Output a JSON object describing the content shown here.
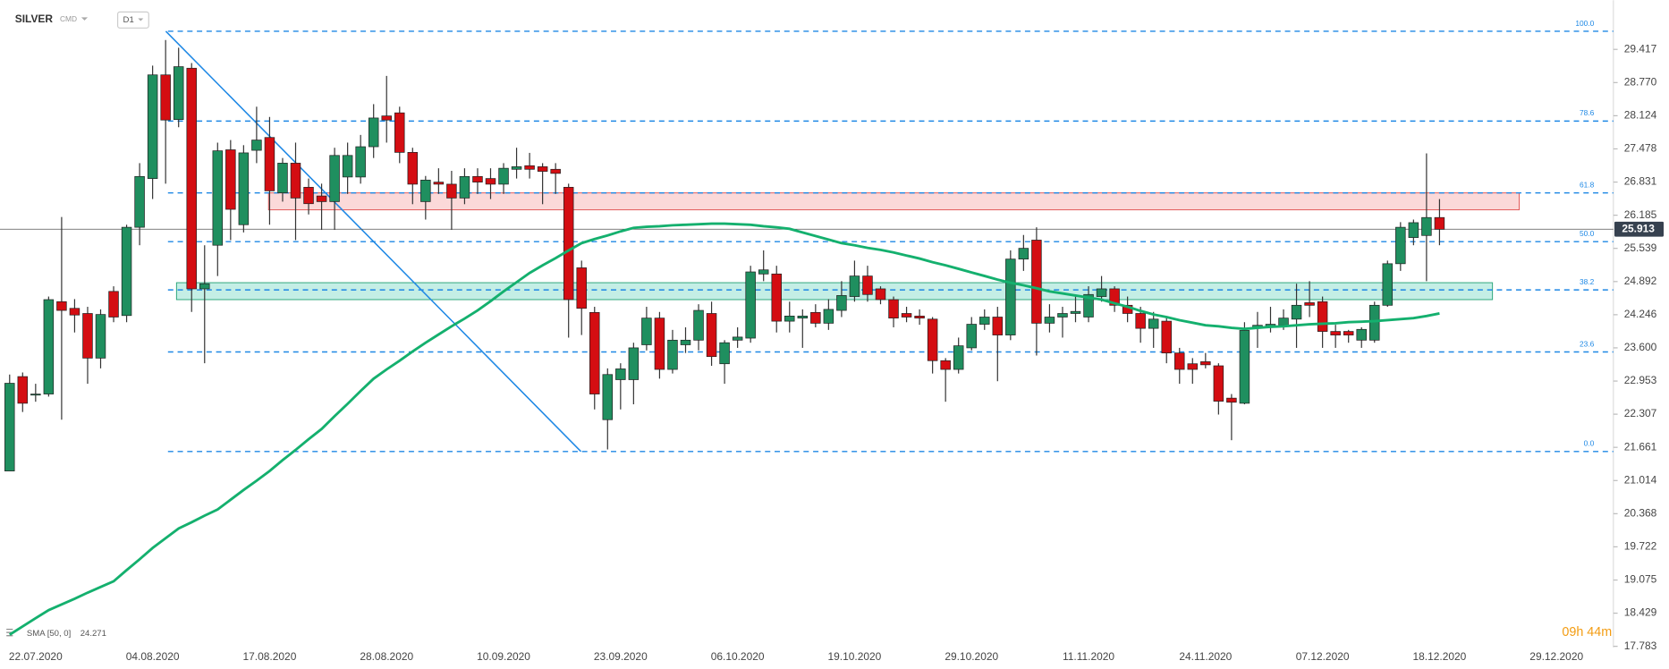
{
  "chart_data": {
    "type": "candlestick",
    "symbol": "SILVER",
    "market": "CMD",
    "timeframe": "D1",
    "categories": [
      null,
      null,
      "22.07.2020",
      null,
      null,
      null,
      null,
      null,
      null,
      null,
      null,
      "04.08.2020",
      null,
      null,
      null,
      null,
      null,
      null,
      null,
      null,
      "17.08.2020",
      null,
      null,
      null,
      null,
      null,
      null,
      null,
      null,
      "28.08.2020",
      null,
      null,
      null,
      null,
      null,
      null,
      null,
      null,
      "10.09.2020",
      null,
      null,
      null,
      null,
      null,
      null,
      null,
      null,
      "23.09.2020",
      null,
      null,
      null,
      null,
      null,
      null,
      null,
      null,
      "06.10.2020",
      null,
      null,
      null,
      null,
      null,
      null,
      null,
      null,
      "19.10.2020",
      null,
      null,
      null,
      null,
      null,
      null,
      null,
      null,
      "29.10.2020",
      null,
      null,
      null,
      null,
      null,
      null,
      null,
      null,
      "11.11.2020",
      null,
      null,
      null,
      null,
      null,
      null,
      null,
      null,
      "24.11.2020",
      null,
      null,
      null,
      null,
      null,
      null,
      null,
      null,
      "07.12.2020",
      null,
      null,
      null,
      null,
      null,
      null,
      null,
      null,
      "18.12.2020",
      null,
      null,
      null,
      null,
      null,
      null,
      null,
      null,
      "29.12.2020"
    ],
    "open": [
      21.2,
      23.04,
      22.68,
      22.7,
      24.5,
      24.37,
      24.27,
      23.4,
      24.7,
      24.23,
      25.95,
      26.9,
      28.92,
      28.05,
      29.05,
      24.75,
      25.6,
      27.46,
      26.0,
      27.45,
      27.7,
      26.62,
      27.2,
      26.73,
      26.56,
      26.45,
      26.93,
      26.93,
      27.52,
      28.12,
      28.18,
      27.41,
      26.45,
      26.83,
      26.79,
      26.52,
      26.94,
      26.9,
      26.79,
      27.08,
      27.15,
      27.13,
      27.08,
      26.73,
      25.16,
      24.29,
      22.2,
      22.98,
      22.98,
      23.66,
      24.18,
      23.18,
      23.66,
      23.75,
      24.27,
      23.29,
      23.75,
      23.79,
      25.04,
      25.04,
      24.12,
      24.18,
      24.29,
      24.08,
      24.33,
      24.6,
      25.0,
      24.75,
      24.54,
      24.27,
      24.22,
      24.16,
      23.35,
      23.18,
      23.6,
      24.06,
      24.2,
      23.85,
      25.33,
      25.7,
      24.08,
      24.2,
      24.27,
      24.2,
      24.6,
      24.75,
      24.43,
      24.27,
      23.98,
      24.12,
      23.5,
      23.29,
      23.33,
      23.25,
      22.62,
      22.52,
      23.98,
      24.0,
      24.04,
      24.16,
      24.48,
      24.5,
      23.92,
      23.92,
      23.75,
      23.75,
      24.43,
      25.24,
      25.75,
      25.79,
      26.14,
      null,
      null,
      null,
      null,
      null,
      null,
      null,
      null,
      null
    ],
    "high": [
      23.08,
      23.12,
      22.9,
      24.6,
      26.15,
      24.55,
      24.4,
      24.35,
      24.8,
      26.0,
      27.2,
      29.1,
      29.6,
      29.45,
      29.15,
      25.6,
      27.6,
      27.65,
      27.55,
      28.3,
      28.1,
      27.3,
      27.6,
      26.9,
      26.8,
      27.5,
      27.6,
      27.75,
      28.35,
      28.9,
      28.3,
      27.5,
      26.95,
      27.1,
      27.05,
      27.1,
      27.1,
      27.1,
      27.2,
      27.5,
      27.4,
      27.2,
      27.2,
      26.8,
      25.3,
      24.4,
      23.2,
      23.3,
      23.7,
      24.4,
      24.3,
      23.95,
      24.0,
      24.45,
      24.5,
      23.75,
      24.0,
      25.2,
      25.5,
      25.2,
      24.5,
      24.35,
      24.45,
      24.55,
      24.9,
      25.3,
      25.2,
      24.8,
      24.6,
      24.4,
      24.35,
      24.2,
      23.4,
      23.8,
      24.2,
      24.35,
      24.4,
      25.5,
      25.8,
      25.95,
      24.45,
      24.4,
      24.6,
      24.8,
      25.0,
      24.8,
      24.6,
      24.4,
      24.3,
      24.2,
      23.6,
      23.4,
      23.5,
      23.3,
      22.7,
      24.1,
      24.3,
      24.4,
      24.35,
      24.85,
      24.9,
      24.6,
      24.05,
      23.95,
      24.0,
      24.5,
      25.3,
      26.05,
      26.1,
      27.39,
      26.5,
      null,
      null,
      null,
      null,
      null,
      null,
      null,
      null,
      null
    ],
    "low": [
      21.2,
      22.35,
      22.55,
      22.65,
      22.2,
      23.9,
      22.9,
      23.2,
      24.1,
      24.1,
      25.6,
      26.5,
      26.8,
      27.9,
      24.3,
      23.3,
      25.0,
      25.7,
      25.85,
      27.2,
      26.0,
      26.45,
      25.7,
      26.2,
      25.9,
      25.9,
      26.6,
      26.8,
      27.3,
      27.6,
      27.2,
      26.4,
      26.1,
      26.6,
      25.9,
      26.4,
      26.6,
      26.5,
      26.6,
      26.9,
      26.9,
      26.4,
      26.6,
      23.8,
      23.85,
      22.4,
      21.62,
      22.4,
      22.5,
      23.55,
      23.0,
      23.1,
      23.5,
      23.55,
      23.25,
      22.9,
      23.6,
      23.7,
      24.9,
      23.9,
      23.9,
      23.6,
      24.0,
      23.95,
      24.2,
      24.5,
      24.5,
      24.45,
      24.0,
      24.1,
      24.05,
      23.1,
      22.55,
      23.1,
      23.55,
      23.95,
      22.95,
      23.75,
      25.1,
      23.45,
      23.9,
      23.8,
      24.1,
      24.1,
      24.5,
      24.3,
      24.1,
      23.7,
      23.6,
      23.3,
      22.9,
      22.9,
      23.2,
      22.3,
      21.8,
      22.5,
      23.6,
      23.9,
      23.95,
      23.6,
      24.2,
      23.6,
      23.6,
      23.7,
      23.6,
      23.7,
      24.4,
      25.1,
      25.6,
      24.9,
      25.6,
      null,
      null,
      null,
      null,
      null,
      null,
      null,
      null,
      null
    ],
    "close": [
      22.91,
      22.52,
      22.7,
      24.54,
      24.33,
      24.24,
      23.4,
      24.25,
      24.2,
      25.95,
      26.94,
      28.92,
      28.04,
      29.08,
      24.75,
      24.85,
      27.44,
      26.3,
      27.4,
      27.65,
      26.66,
      27.2,
      26.52,
      26.41,
      26.45,
      27.35,
      27.35,
      27.52,
      28.08,
      28.04,
      27.41,
      26.79,
      26.87,
      26.79,
      26.52,
      26.94,
      26.83,
      26.79,
      27.1,
      27.13,
      27.08,
      27.04,
      27.0,
      24.54,
      24.37,
      22.7,
      23.08,
      23.19,
      23.6,
      24.18,
      23.18,
      23.75,
      23.75,
      24.33,
      23.43,
      23.7,
      23.81,
      25.08,
      25.12,
      24.12,
      24.22,
      24.22,
      24.08,
      24.35,
      24.62,
      25.0,
      24.64,
      24.54,
      24.18,
      24.2,
      24.18,
      23.35,
      23.18,
      23.64,
      24.06,
      24.2,
      23.85,
      25.33,
      25.54,
      24.08,
      24.2,
      24.27,
      24.31,
      24.64,
      24.75,
      24.43,
      24.27,
      23.98,
      24.16,
      23.5,
      23.18,
      23.18,
      23.27,
      22.56,
      22.54,
      23.94,
      24.04,
      24.06,
      24.18,
      24.43,
      24.43,
      23.92,
      23.85,
      23.85,
      23.96,
      24.43,
      25.24,
      25.95,
      26.04,
      26.14,
      25.91,
      null,
      null,
      null,
      null,
      null,
      null,
      null,
      null,
      null
    ],
    "up_color": "#1f8f5f",
    "down_color": "#d40d12",
    "sma": {
      "name": "SMA [50, 0]",
      "color": "#14b06e",
      "last_value_label": "24.271",
      "values": [
        18.01,
        18.17,
        18.33,
        18.49,
        18.6,
        18.71,
        18.83,
        18.94,
        19.05,
        19.27,
        19.48,
        19.7,
        19.89,
        20.08,
        20.2,
        20.33,
        20.45,
        20.64,
        20.83,
        21.01,
        21.2,
        21.41,
        21.61,
        21.82,
        22.02,
        22.27,
        22.51,
        22.76,
        23.0,
        23.18,
        23.35,
        23.53,
        23.7,
        23.86,
        24.02,
        24.17,
        24.33,
        24.51,
        24.7,
        24.88,
        25.06,
        25.21,
        25.35,
        25.5,
        25.64,
        25.72,
        25.79,
        25.87,
        25.94,
        25.96,
        25.97,
        25.99,
        26.0,
        26.01,
        26.02,
        26.02,
        26.01,
        26.0,
        25.97,
        25.95,
        25.92,
        25.85,
        25.78,
        25.71,
        25.64,
        25.6,
        25.55,
        25.51,
        25.46,
        25.4,
        25.34,
        25.27,
        25.21,
        25.14,
        25.07,
        25.0,
        24.93,
        24.87,
        24.82,
        24.76,
        24.7,
        24.66,
        24.62,
        24.58,
        24.54,
        24.47,
        24.4,
        24.32,
        24.25,
        24.2,
        24.14,
        24.09,
        24.04,
        24.02,
        23.99,
        23.97,
        23.99,
        24.01,
        24.02,
        24.04,
        24.06,
        24.07,
        24.08,
        24.1,
        24.11,
        24.12,
        24.14,
        24.16,
        24.18,
        24.22,
        24.27,
        null,
        null,
        null,
        null,
        null,
        null,
        null,
        null,
        null
      ]
    },
    "fib_levels": [
      {
        "label": "100.0",
        "price": 29.77
      },
      {
        "label": "78.6",
        "price": 28.02
      },
      {
        "label": "61.8",
        "price": 26.62
      },
      {
        "label": "50.0",
        "price": 25.67
      },
      {
        "label": "38.2",
        "price": 24.73
      },
      {
        "label": "23.6",
        "price": 23.52
      },
      {
        "label": "0.0",
        "price": 21.58
      }
    ],
    "fib_color": "#1e88e5",
    "zones": [
      {
        "from": 26.29,
        "to": 26.62,
        "fill": "rgba(240,120,120,0.28)",
        "stroke": "#e05555"
      },
      {
        "from": 24.54,
        "to": 24.87,
        "fill": "rgba(60,200,170,0.3)",
        "stroke": "#2aa57a"
      }
    ],
    "last_price": 25.913,
    "ylim": [
      17.553,
      30.376
    ],
    "yticks": [
      29.417,
      {
        "value": 28.77,
        "label": "28.770"
      },
      28.124,
      27.478,
      26.831,
      26.185,
      25.539,
      24.892,
      24.246,
      {
        "value": 23.6,
        "label": "23.600"
      },
      22.953,
      22.307,
      21.661,
      21.014,
      20.368,
      19.722,
      19.075,
      18.429,
      17.783
    ],
    "countdown": "09h 44m"
  }
}
